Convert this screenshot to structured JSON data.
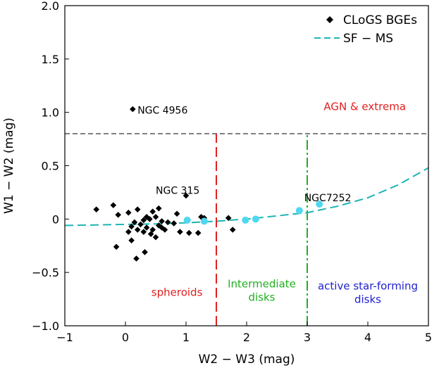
{
  "chart_data": {
    "type": "scatter",
    "xlabel": "W2 − W3 (mag)",
    "ylabel": "W1 − W2 (mag)",
    "xlim": [
      -1,
      5
    ],
    "ylim": [
      -1,
      2
    ],
    "x_ticks": [
      -1,
      0,
      1,
      2,
      3,
      4,
      5
    ],
    "x_tick_labels": [
      "−1",
      "0",
      "1",
      "2",
      "3",
      "4",
      "5"
    ],
    "y_ticks": [
      -1,
      -0.5,
      0,
      0.5,
      1,
      1.5,
      2
    ],
    "y_tick_labels": [
      "−1.0",
      "−0.5",
      "0",
      "0.5",
      "1.0",
      "1.5",
      "2.0"
    ],
    "legend": {
      "position": "top-right",
      "entries": [
        {
          "label": "CLoGS BGEs",
          "marker": "diamond",
          "color": "#000000"
        },
        {
          "label": "SF − MS",
          "marker": "dashed-line",
          "color": "#1fb4b4"
        }
      ]
    },
    "reference_lines": [
      {
        "name": "agn-threshold",
        "orientation": "horizontal",
        "y": 0.8,
        "color": "#808080",
        "style": "dashed"
      },
      {
        "name": "spheroid-boundary",
        "orientation": "vertical",
        "x": 1.5,
        "y_range": [
          -1,
          0.8
        ],
        "color": "#e02020",
        "style": "dashed"
      },
      {
        "name": "sf-boundary",
        "orientation": "vertical",
        "x": 3.0,
        "y_range": [
          -1,
          0.8
        ],
        "color": "#20b020",
        "style": "dashdot"
      }
    ],
    "sf_ms_curve": {
      "name": "SF − MS",
      "x": [
        -1,
        -0.5,
        0,
        0.5,
        1,
        1.5,
        2,
        2.5,
        3,
        3.5,
        4,
        4.5,
        5
      ],
      "y": [
        -0.06,
        -0.055,
        -0.05,
        -0.045,
        -0.035,
        -0.02,
        0.0,
        0.03,
        0.06,
        0.12,
        0.2,
        0.32,
        0.48
      ],
      "color": "#1fb4b4"
    },
    "region_labels": [
      {
        "lines": [
          "AGN & extrema"
        ],
        "x": 3.95,
        "y": 1.02,
        "color": "#e02020"
      },
      {
        "lines": [
          "spheroids"
        ],
        "x": 0.85,
        "y": -0.72,
        "color": "#e02020"
      },
      {
        "lines": [
          "Intermediate",
          "disks"
        ],
        "x": 2.25,
        "y": -0.64,
        "color": "#20b020"
      },
      {
        "lines": [
          "active star-forming",
          "disks"
        ],
        "x": 4.0,
        "y": -0.66,
        "color": "#2020d0"
      }
    ],
    "series": [
      {
        "name": "CLoGS BGEs",
        "marker": "diamond",
        "color": "#000000",
        "points": [
          {
            "x": 0.12,
            "y": 1.03
          },
          {
            "x": 1.0,
            "y": 0.22
          },
          {
            "x": -0.48,
            "y": 0.09
          },
          {
            "x": -0.2,
            "y": 0.13
          },
          {
            "x": -0.12,
            "y": 0.04
          },
          {
            "x": 0.05,
            "y": 0.06
          },
          {
            "x": 0.2,
            "y": 0.09
          },
          {
            "x": 0.35,
            "y": 0.02
          },
          {
            "x": 0.45,
            "y": 0.07
          },
          {
            "x": 0.55,
            "y": 0.1
          },
          {
            "x": 0.3,
            "y": -0.01
          },
          {
            "x": 0.4,
            "y": 0.0
          },
          {
            "x": 0.5,
            "y": 0.02
          },
          {
            "x": 0.6,
            "y": -0.02
          },
          {
            "x": 0.7,
            "y": -0.03
          },
          {
            "x": 0.15,
            "y": -0.03
          },
          {
            "x": 0.25,
            "y": -0.05
          },
          {
            "x": 0.35,
            "y": -0.08
          },
          {
            "x": 0.45,
            "y": -0.1
          },
          {
            "x": 0.55,
            "y": -0.06
          },
          {
            "x": 0.1,
            "y": -0.07
          },
          {
            "x": 0.2,
            "y": -0.1
          },
          {
            "x": 0.3,
            "y": -0.12
          },
          {
            "x": 0.42,
            "y": -0.14
          },
          {
            "x": 0.6,
            "y": -0.08
          },
          {
            "x": 0.8,
            "y": -0.04
          },
          {
            "x": 0.9,
            "y": -0.12
          },
          {
            "x": 1.05,
            "y": -0.13
          },
          {
            "x": 1.25,
            "y": 0.02
          },
          {
            "x": 1.3,
            "y": 0.01
          },
          {
            "x": 1.2,
            "y": -0.13
          },
          {
            "x": 0.85,
            "y": 0.05
          },
          {
            "x": 1.7,
            "y": 0.01
          },
          {
            "x": 1.77,
            "y": -0.1
          },
          {
            "x": -0.15,
            "y": -0.26
          },
          {
            "x": 0.1,
            "y": -0.2
          },
          {
            "x": 0.32,
            "y": -0.31
          },
          {
            "x": 0.18,
            "y": -0.37
          },
          {
            "x": 0.05,
            "y": -0.12
          },
          {
            "x": 0.65,
            "y": -0.1
          },
          {
            "x": 0.5,
            "y": -0.17
          }
        ]
      },
      {
        "name": "highlighted",
        "marker": "circle",
        "color": "#4fd8f0",
        "points": [
          {
            "x": 1.02,
            "y": -0.01
          },
          {
            "x": 1.3,
            "y": -0.02
          },
          {
            "x": 1.98,
            "y": -0.01
          },
          {
            "x": 2.15,
            "y": 0.0
          },
          {
            "x": 2.87,
            "y": 0.08
          },
          {
            "x": 3.2,
            "y": 0.14
          }
        ]
      }
    ],
    "annotations": [
      {
        "text": "NGC 4956",
        "x": 0.2,
        "y": 1.02
      },
      {
        "text": "NGC 315",
        "x": 0.5,
        "y": 0.27
      },
      {
        "text": "NGC7252",
        "x": 2.95,
        "y": 0.2
      }
    ]
  }
}
